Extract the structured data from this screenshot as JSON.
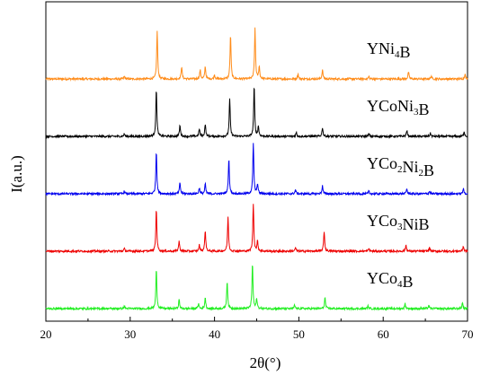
{
  "chart_data": {
    "type": "line",
    "title": "",
    "xlabel": "2θ(°)",
    "ylabel": "I(a.u.)",
    "xlim": [
      20,
      70
    ],
    "xticks": [
      "20",
      "30",
      "40",
      "50",
      "60",
      "70"
    ],
    "yticks_shown": false,
    "series": [
      {
        "name": "YNi4B",
        "label_parts": [
          {
            "t": "YNi",
            "sub": false
          },
          {
            "t": "4",
            "sub": true
          },
          {
            "t": "B",
            "sub": false
          }
        ],
        "color": "#ff8c1a",
        "offset": 4,
        "peaks": [
          [
            29.3,
            0.05
          ],
          [
            33.2,
            0.95
          ],
          [
            36.1,
            0.25
          ],
          [
            38.3,
            0.18
          ],
          [
            38.9,
            0.25
          ],
          [
            40.0,
            0.08
          ],
          [
            41.9,
            0.88
          ],
          [
            44.8,
            1.0
          ],
          [
            45.3,
            0.25
          ],
          [
            49.9,
            0.1
          ],
          [
            52.8,
            0.18
          ],
          [
            58.3,
            0.05
          ],
          [
            63.0,
            0.14
          ],
          [
            65.7,
            0.06
          ],
          [
            69.7,
            0.1
          ]
        ]
      },
      {
        "name": "YCoNi3B",
        "label_parts": [
          {
            "t": "YCoNi",
            "sub": false
          },
          {
            "t": "3",
            "sub": true
          },
          {
            "t": "B",
            "sub": false
          }
        ],
        "color": "#000000",
        "offset": 3,
        "peaks": [
          [
            29.3,
            0.05
          ],
          [
            33.1,
            0.95
          ],
          [
            35.9,
            0.22
          ],
          [
            38.2,
            0.15
          ],
          [
            38.9,
            0.25
          ],
          [
            41.8,
            0.75
          ],
          [
            44.7,
            1.0
          ],
          [
            45.2,
            0.2
          ],
          [
            49.7,
            0.08
          ],
          [
            52.8,
            0.18
          ],
          [
            58.3,
            0.05
          ],
          [
            62.8,
            0.12
          ],
          [
            65.6,
            0.06
          ],
          [
            69.6,
            0.1
          ]
        ]
      },
      {
        "name": "YCo2Ni2B",
        "label_parts": [
          {
            "t": "YCo",
            "sub": false
          },
          {
            "t": "2",
            "sub": true
          },
          {
            "t": "Ni",
            "sub": false
          },
          {
            "t": "2",
            "sub": true
          },
          {
            "t": "B",
            "sub": false
          }
        ],
        "color": "#0000ee",
        "offset": 2,
        "peaks": [
          [
            29.3,
            0.05
          ],
          [
            33.1,
            0.85
          ],
          [
            35.9,
            0.22
          ],
          [
            38.2,
            0.12
          ],
          [
            38.9,
            0.2
          ],
          [
            41.7,
            0.7
          ],
          [
            44.6,
            1.0
          ],
          [
            45.1,
            0.2
          ],
          [
            49.6,
            0.08
          ],
          [
            52.8,
            0.16
          ],
          [
            58.3,
            0.05
          ],
          [
            62.8,
            0.1
          ],
          [
            65.5,
            0.05
          ],
          [
            69.5,
            0.1
          ]
        ]
      },
      {
        "name": "YCo3NiB",
        "label_parts": [
          {
            "t": "YCo",
            "sub": false
          },
          {
            "t": "3",
            "sub": true
          },
          {
            "t": "NiB",
            "sub": false
          }
        ],
        "color": "#ee0000",
        "offset": 1,
        "peaks": [
          [
            29.3,
            0.05
          ],
          [
            33.1,
            0.85
          ],
          [
            35.8,
            0.2
          ],
          [
            38.2,
            0.12
          ],
          [
            38.9,
            0.42
          ],
          [
            41.6,
            0.68
          ],
          [
            44.6,
            0.95
          ],
          [
            45.1,
            0.2
          ],
          [
            49.6,
            0.07
          ],
          [
            53.0,
            0.4
          ],
          [
            58.3,
            0.05
          ],
          [
            62.7,
            0.12
          ],
          [
            65.5,
            0.07
          ],
          [
            69.5,
            0.1
          ]
        ]
      },
      {
        "name": "YCo4B",
        "label_parts": [
          {
            "t": "YCo",
            "sub": false
          },
          {
            "t": "4",
            "sub": true
          },
          {
            "t": "B",
            "sub": false
          }
        ],
        "color": "#22ee22",
        "offset": 0,
        "peaks": [
          [
            29.3,
            0.05
          ],
          [
            33.1,
            0.78
          ],
          [
            35.8,
            0.18
          ],
          [
            38.1,
            0.1
          ],
          [
            38.9,
            0.22
          ],
          [
            41.5,
            0.55
          ],
          [
            44.5,
            0.9
          ],
          [
            45.0,
            0.2
          ],
          [
            49.5,
            0.07
          ],
          [
            53.1,
            0.22
          ],
          [
            58.2,
            0.05
          ],
          [
            62.6,
            0.1
          ],
          [
            65.4,
            0.06
          ],
          [
            69.4,
            0.12
          ]
        ]
      }
    ]
  }
}
